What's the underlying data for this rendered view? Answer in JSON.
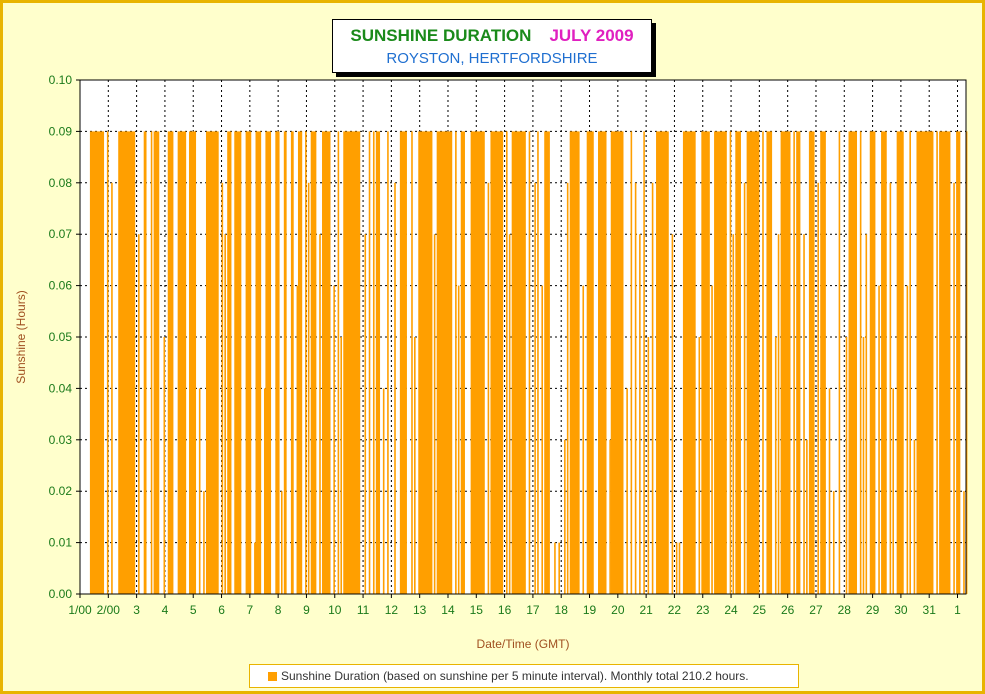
{
  "header": {
    "title": "SUNSHINE DURATION",
    "month": "JULY 2009",
    "location": "ROYSTON, HERTFORDSHIRE"
  },
  "colors": {
    "bar": "#ff9f00",
    "axis_tick_labels": "#1a7a1a",
    "axis_titles": "#a05020",
    "frame": "#e8b400",
    "background": "#ffffcc"
  },
  "legend": {
    "label": "Sunshine Duration (based on sunshine per 5 minute interval). Monthly total 210.2 hours."
  },
  "chart_data": {
    "type": "bar",
    "title": "SUNSHINE DURATION JULY 2009",
    "subtitle": "ROYSTON, HERTFORDSHIRE",
    "xlabel": "Date/Time (GMT)",
    "ylabel": "Sunshine (Hours)",
    "ylim": [
      0,
      0.1
    ],
    "yticks": [
      "0.00",
      "0.01",
      "0.02",
      "0.03",
      "0.04",
      "0.05",
      "0.06",
      "0.07",
      "0.08",
      "0.09",
      "0.10"
    ],
    "xticks": [
      "1/00",
      "2/00",
      "3",
      "4",
      "5",
      "6",
      "7",
      "8",
      "9",
      "10",
      "11",
      "12",
      "13",
      "14",
      "15",
      "16",
      "17",
      "18",
      "19",
      "20",
      "21",
      "22",
      "23",
      "24",
      "25",
      "26",
      "27",
      "28",
      "29",
      "30",
      "31",
      "1"
    ],
    "xlim_days": [
      0,
      31.3
    ],
    "grid": true,
    "legend_position": "bottom",
    "series": [
      {
        "name": "Sunshine Duration (based on sunshine per 5 minute interval). Monthly total 210.2 hours.",
        "sunny_periods_day": [
          [
            0.35,
            0.85
          ],
          [
            1.35,
            1.95
          ],
          [
            2.25,
            2.35
          ],
          [
            2.6,
            2.8
          ],
          [
            3.1,
            3.3
          ],
          [
            3.45,
            3.75
          ],
          [
            3.9,
            4.1
          ],
          [
            4.45,
            4.9
          ],
          [
            5.2,
            5.35
          ],
          [
            5.45,
            5.7
          ],
          [
            5.85,
            6.05
          ],
          [
            6.2,
            6.4
          ],
          [
            6.55,
            6.75
          ],
          [
            6.9,
            7.05
          ],
          [
            7.2,
            7.3
          ],
          [
            7.45,
            7.55
          ],
          [
            7.7,
            7.85
          ],
          [
            8.15,
            8.35
          ],
          [
            8.55,
            8.85
          ],
          [
            9.3,
            9.9
          ],
          [
            10.45,
            10.6
          ],
          [
            11.3,
            11.55
          ],
          [
            11.95,
            12.45
          ],
          [
            12.6,
            13.15
          ],
          [
            13.45,
            13.6
          ],
          [
            13.8,
            14.3
          ],
          [
            14.5,
            14.95
          ],
          [
            15.25,
            15.75
          ],
          [
            16.4,
            16.6
          ],
          [
            17.3,
            17.65
          ],
          [
            17.9,
            18.15
          ],
          [
            18.3,
            18.6
          ],
          [
            18.75,
            19.2
          ],
          [
            20.35,
            20.8
          ],
          [
            21.3,
            21.75
          ],
          [
            21.95,
            22.25
          ],
          [
            22.4,
            22.85
          ],
          [
            23.15,
            23.35
          ],
          [
            23.55,
            24.0
          ],
          [
            24.25,
            24.45
          ],
          [
            24.75,
            25.1
          ],
          [
            25.3,
            25.45
          ],
          [
            25.75,
            25.95
          ],
          [
            26.15,
            26.35
          ],
          [
            27.15,
            27.45
          ],
          [
            27.9,
            28.1
          ],
          [
            28.3,
            28.5
          ],
          [
            28.85,
            29.1
          ],
          [
            29.55,
            30.15
          ],
          [
            30.35,
            30.75
          ],
          [
            31.0,
            31.1
          ],
          [
            31.3,
            31.35
          ]
        ],
        "scattered_intervals_day": [
          [
            0.95,
            0.09
          ],
          [
            1.1,
            0.08
          ],
          [
            2.05,
            0.07
          ],
          [
            2.5,
            0.09
          ],
          [
            2.95,
            0.05
          ],
          [
            3.85,
            0.09
          ],
          [
            4.2,
            0.04
          ],
          [
            4.35,
            0.02
          ],
          [
            5.0,
            0.08
          ],
          [
            5.1,
            0.07
          ],
          [
            6.15,
            0.01
          ],
          [
            6.5,
            0.04
          ],
          [
            7.1,
            0.02
          ],
          [
            7.65,
            0.06
          ],
          [
            7.95,
            0.09
          ],
          [
            8.05,
            0.08
          ],
          [
            8.45,
            0.07
          ],
          [
            8.95,
            0.06
          ],
          [
            9.1,
            0.09
          ],
          [
            9.2,
            0.05
          ],
          [
            10.05,
            0.07
          ],
          [
            10.2,
            0.09
          ],
          [
            10.35,
            0.09
          ],
          [
            10.7,
            0.04
          ],
          [
            10.85,
            0.09
          ],
          [
            11.1,
            0.08
          ],
          [
            11.7,
            0.09
          ],
          [
            11.8,
            0.05
          ],
          [
            12.5,
            0.07
          ],
          [
            13.25,
            0.09
          ],
          [
            13.35,
            0.06
          ],
          [
            14.4,
            0.08
          ],
          [
            15.05,
            0.09
          ],
          [
            15.15,
            0.07
          ],
          [
            15.85,
            0.09
          ],
          [
            16.05,
            0.08
          ],
          [
            16.15,
            0.09
          ],
          [
            16.3,
            0.06
          ],
          [
            16.75,
            0.01
          ],
          [
            16.9,
            0.01
          ],
          [
            17.1,
            0.03
          ],
          [
            17.2,
            0.08
          ],
          [
            17.75,
            0.06
          ],
          [
            18.7,
            0.03
          ],
          [
            19.3,
            0.04
          ],
          [
            19.45,
            0.09
          ],
          [
            19.6,
            0.08
          ],
          [
            19.75,
            0.07
          ],
          [
            19.9,
            0.09
          ],
          [
            20.05,
            0.05
          ],
          [
            20.2,
            0.08
          ],
          [
            20.9,
            0.07
          ],
          [
            21.05,
            0.01
          ],
          [
            21.15,
            0.01
          ],
          [
            21.85,
            0.05
          ],
          [
            22.3,
            0.06
          ],
          [
            22.95,
            0.09
          ],
          [
            23.05,
            0.07
          ],
          [
            23.45,
            0.08
          ],
          [
            24.1,
            0.09
          ],
          [
            24.55,
            0.05
          ],
          [
            24.65,
            0.07
          ],
          [
            25.2,
            0.09
          ],
          [
            25.55,
            0.07
          ],
          [
            25.65,
            0.03
          ],
          [
            26.05,
            0.08
          ],
          [
            26.45,
            0.04
          ],
          [
            26.6,
            0.02
          ],
          [
            26.8,
            0.09
          ],
          [
            27.05,
            0.05
          ],
          [
            27.55,
            0.09
          ],
          [
            27.65,
            0.05
          ],
          [
            27.75,
            0.07
          ],
          [
            28.2,
            0.06
          ],
          [
            28.6,
            0.08
          ],
          [
            28.7,
            0.04
          ],
          [
            29.2,
            0.06
          ],
          [
            29.3,
            0.09
          ],
          [
            29.45,
            0.03
          ],
          [
            30.25,
            0.09
          ],
          [
            30.85,
            0.08
          ],
          [
            30.95,
            0.09
          ],
          [
            31.2,
            0.02
          ]
        ]
      }
    ]
  }
}
